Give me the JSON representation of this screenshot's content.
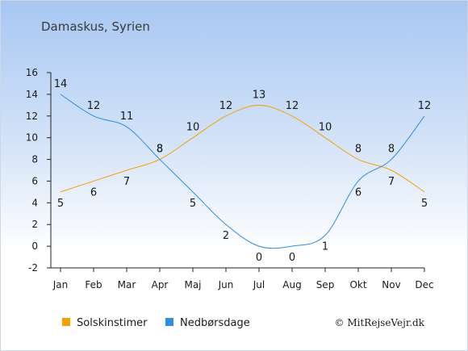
{
  "chart_data": {
    "type": "line",
    "title": "Damaskus, Syrien",
    "categories": [
      "Jan",
      "Feb",
      "Mar",
      "Apr",
      "Maj",
      "Jun",
      "Jul",
      "Aug",
      "Sep",
      "Okt",
      "Nov",
      "Dec"
    ],
    "series": [
      {
        "name": "Solskinstimer",
        "color": "#f5a000",
        "values": [
          5,
          6,
          7,
          8,
          10,
          12,
          13,
          12,
          10,
          8,
          7,
          5
        ]
      },
      {
        "name": "Nedbørsdage",
        "color": "#2e8ee0",
        "values": [
          14,
          12,
          11,
          8,
          5,
          2,
          0,
          0,
          1,
          6,
          8,
          12
        ]
      }
    ],
    "ylim": [
      -2,
      16
    ],
    "yticks": [
      -2,
      0,
      2,
      4,
      6,
      8,
      10,
      12,
      14,
      16
    ],
    "legend_position": "bottom-left",
    "credit": "© MitRejseVejr.dk"
  }
}
